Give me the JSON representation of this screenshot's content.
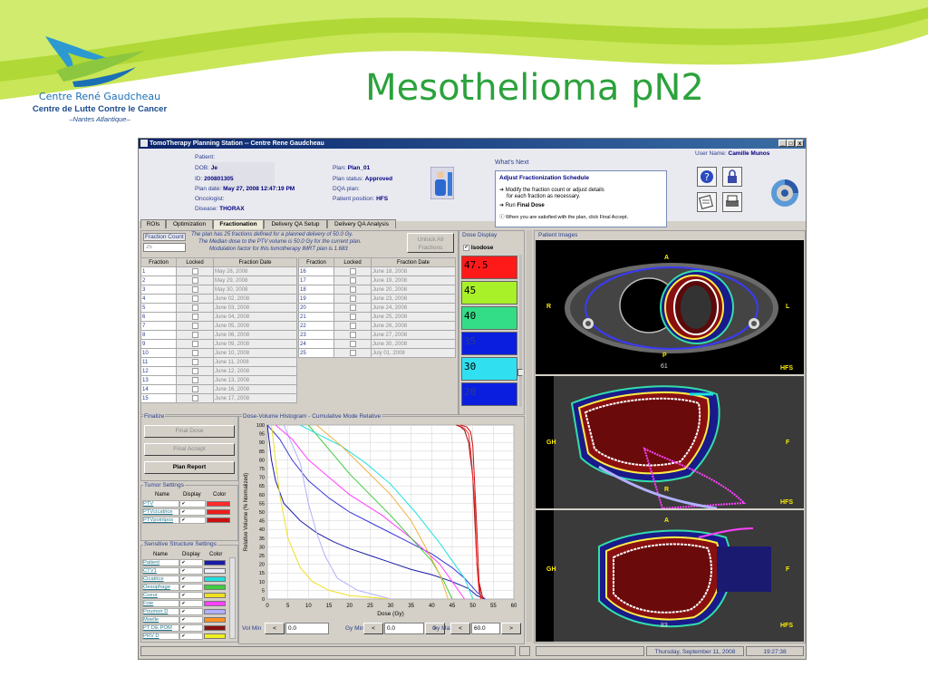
{
  "slide": {
    "title": "Mesothelioma pN2",
    "logo_name": "Centre René Gaudcheau",
    "logo_subtitle": "Centre de Lutte Contre le Cancer",
    "logo_city": "–Nantes Atlantique–"
  },
  "window": {
    "title": "TomoTherapy Planning Station -- Centre Rene Gaudcheau",
    "buttons": [
      "_",
      "□",
      "x"
    ]
  },
  "patient": {
    "patient_label": "Patient:",
    "dob_label": "DOB:",
    "dob_value": "Je",
    "id_label": "ID:",
    "id_value": "200801305",
    "plan_date_label": "Plan date:",
    "plan_date_value": "May 27, 2008 12:47:19 PM",
    "oncologist_label": "Oncologist:",
    "disease_label": "Disease:",
    "disease_value": "THORAX",
    "plan_label": "Plan:",
    "plan_value": "Plan_01",
    "status_label": "Plan status:",
    "status_value": "Approved",
    "dqa_label": "DQA plan:",
    "position_label": "Patient position:",
    "position_value": "HFS"
  },
  "whats_next": {
    "title": "What's Next",
    "heading": "Adjust Fractionization Schedule",
    "line1": "➔ Modify the fraction count or adjust details",
    "line2": "for each fraction as necessary.",
    "line3a": "➔ Run ",
    "line3b": "Final Dose",
    "line4": "ⓘ When you are satisfied with the plan, click Final Accept."
  },
  "user": {
    "label": "User Name:",
    "value": "Camille Munos"
  },
  "tabs": [
    "ROIs",
    "Optimization",
    "Fractionation",
    "Delivery QA Setup",
    "Delivery QA Analysis"
  ],
  "fractionation": {
    "count_label": "Fraction Count",
    "count_value": "25",
    "desc1": "The plan has 25 fractions defined for a planned delivery of 50.0 Gy.",
    "desc2": "The Median dose to the PTV volume is 50.0 Gy for the current plan.",
    "desc3": "Modulation factor for this tomotherapy IMRT plan is 1.683",
    "unlock_label1": "Unlock All",
    "unlock_label2": "Fractions",
    "headers": [
      "Fraction",
      "Locked",
      "Fraction Date"
    ],
    "left_rows": [
      {
        "n": "1",
        "d": "May 28, 2008"
      },
      {
        "n": "2",
        "d": "May 29, 2008"
      },
      {
        "n": "3",
        "d": "May 30, 2008"
      },
      {
        "n": "4",
        "d": "June 02, 2008"
      },
      {
        "n": "5",
        "d": "June 03, 2008"
      },
      {
        "n": "6",
        "d": "June 04, 2008"
      },
      {
        "n": "7",
        "d": "June 05, 2008"
      },
      {
        "n": "8",
        "d": "June 06, 2008"
      },
      {
        "n": "9",
        "d": "June 09, 2008"
      },
      {
        "n": "10",
        "d": "June 10, 2008"
      },
      {
        "n": "11",
        "d": "June 11, 2008"
      },
      {
        "n": "12",
        "d": "June 12, 2008"
      },
      {
        "n": "13",
        "d": "June 13, 2008"
      },
      {
        "n": "14",
        "d": "June 16, 2008"
      },
      {
        "n": "15",
        "d": "June 17, 2008"
      }
    ],
    "right_rows": [
      {
        "n": "16",
        "d": "June 18, 2008"
      },
      {
        "n": "17",
        "d": "June 19, 2008"
      },
      {
        "n": "18",
        "d": "June 20, 2008"
      },
      {
        "n": "19",
        "d": "June 23, 2008"
      },
      {
        "n": "20",
        "d": "June 24, 2008"
      },
      {
        "n": "21",
        "d": "June 25, 2008"
      },
      {
        "n": "22",
        "d": "June 26, 2008"
      },
      {
        "n": "23",
        "d": "June 27, 2008"
      },
      {
        "n": "24",
        "d": "June 30, 2008"
      },
      {
        "n": "25",
        "d": "July 01, 2008"
      }
    ]
  },
  "dose_display": {
    "title": "Dose Display",
    "isodose_label": "Isodose",
    "levels": [
      {
        "v": "47.5",
        "bg": "#ff1a1a",
        "fg": "#000000"
      },
      {
        "v": "45",
        "bg": "#a8f028",
        "fg": "#000000"
      },
      {
        "v": "40",
        "bg": "#33dd88",
        "fg": "#000000"
      },
      {
        "v": "35",
        "bg": "#0a1ee0",
        "fg": "#2a3e8c"
      },
      {
        "v": "30",
        "bg": "#30e0f0",
        "fg": "#000000"
      },
      {
        "v": "20",
        "bg": "#0a1ee0",
        "fg": "#2a3e8c"
      }
    ]
  },
  "finalize": {
    "title": "Finalize",
    "final_dose": "Final Dose",
    "final_accept": "Final Accept",
    "plan_report": "Plan Report"
  },
  "tumor": {
    "title": "Tumor Settings",
    "headers": [
      "Name",
      "Display",
      "Color"
    ],
    "rows": [
      {
        "name": "PTV",
        "color": "#ff2a2a"
      },
      {
        "name": "PTVcicatrice",
        "color": "#ee1c1c"
      },
      {
        "name": "PTVpointpos",
        "color": "#cc1010"
      }
    ]
  },
  "sensitive": {
    "title": "Sensitive Structure Settings",
    "headers": [
      "Name",
      "Display",
      "Color"
    ],
    "rows": [
      {
        "name": "Patient",
        "color": "#1a1aa8"
      },
      {
        "name": "CTV1",
        "color": "#f0f0ff"
      },
      {
        "name": "Cicatrice",
        "color": "#20e0e0"
      },
      {
        "name": "Oesophage",
        "color": "#40cc40"
      },
      {
        "name": "Coeur",
        "color": "#f0e020"
      },
      {
        "name": "Foie",
        "color": "#ff40ff"
      },
      {
        "name": "Poumon D",
        "color": "#b0b0ff"
      },
      {
        "name": "Moelle",
        "color": "#ff9020"
      },
      {
        "name": "PT DE POM",
        "color": "#8a1010"
      },
      {
        "name": "PRV D",
        "color": "#f0f020"
      }
    ]
  },
  "dvh": {
    "title": "Dose-Volume Histogram - Cumulative Mode Relative",
    "vol_min_label": "Vol Min",
    "vol_min_value": "0.0",
    "gy_min_label": "Gy Min",
    "gy_min_value": "0.0",
    "gy_max_label": "Gy Max",
    "gy_max_value": "60.0",
    "spin_less": "<",
    "spin_more": ">"
  },
  "chart_data": {
    "type": "line",
    "title": "Dose-Volume Histogram - Cumulative Mode Relative",
    "xlabel": "Dose (Gy)",
    "ylabel": "Relative Volume (% Normalized)",
    "xlim": [
      0,
      60
    ],
    "ylim": [
      0,
      100
    ],
    "xticks": [
      0,
      5,
      10,
      15,
      20,
      25,
      30,
      35,
      40,
      45,
      50,
      55,
      60
    ],
    "yticks": [
      0,
      5,
      10,
      15,
      20,
      25,
      30,
      35,
      40,
      45,
      50,
      55,
      60,
      65,
      70,
      75,
      80,
      85,
      90,
      95,
      100
    ],
    "grid": true,
    "series": [
      {
        "color": "#1a1aa8",
        "x": [
          0,
          1,
          2,
          4,
          8,
          12,
          16,
          20,
          25,
          30,
          35,
          40,
          45,
          49,
          51,
          53
        ],
        "y": [
          100,
          80,
          68,
          55,
          45,
          38,
          33,
          29,
          25,
          21,
          17,
          14,
          10,
          6,
          2,
          0
        ]
      },
      {
        "color": "#3a3ad8",
        "x": [
          0,
          3,
          6,
          10,
          15,
          20,
          25,
          30,
          35,
          40,
          45,
          48,
          51,
          53
        ],
        "y": [
          100,
          92,
          80,
          68,
          58,
          50,
          44,
          38,
          32,
          26,
          18,
          12,
          4,
          0
        ]
      },
      {
        "color": "#f0e020",
        "x": [
          1,
          3,
          5,
          8,
          11,
          15,
          20,
          30
        ],
        "y": [
          100,
          60,
          35,
          18,
          10,
          5,
          2,
          0
        ]
      },
      {
        "color": "#b0b0ff",
        "x": [
          4,
          8,
          10,
          12,
          14,
          17,
          22,
          30
        ],
        "y": [
          100,
          78,
          55,
          38,
          25,
          12,
          5,
          0
        ]
      },
      {
        "color": "#ff40ff",
        "x": [
          2,
          6,
          10,
          15,
          20,
          28,
          35,
          42,
          48
        ],
        "y": [
          100,
          92,
          80,
          70,
          60,
          48,
          35,
          20,
          0
        ]
      },
      {
        "color": "#40cc40",
        "x": [
          10,
          15,
          20,
          25,
          30,
          35,
          40,
          43,
          45
        ],
        "y": [
          100,
          86,
          72,
          60,
          48,
          35,
          22,
          10,
          0
        ]
      },
      {
        "color": "#20e0e0",
        "x": [
          8,
          12,
          18,
          24,
          30,
          36,
          42,
          48,
          50
        ],
        "y": [
          100,
          95,
          88,
          78,
          66,
          50,
          32,
          12,
          0
        ]
      },
      {
        "color": "#f0b040",
        "x": [
          12,
          18,
          24,
          30,
          35,
          38,
          42,
          44
        ],
        "y": [
          100,
          88,
          74,
          60,
          45,
          32,
          14,
          0
        ]
      },
      {
        "color": "#8a1010",
        "x": [
          46,
          47,
          48,
          49,
          50,
          51,
          52
        ],
        "y": [
          100,
          99,
          97,
          90,
          70,
          20,
          0
        ]
      },
      {
        "color": "#ff2a2a",
        "x": [
          46.5,
          48,
          49,
          49.5,
          50.5,
          51,
          51.5,
          52
        ],
        "y": [
          100,
          98,
          95,
          85,
          55,
          20,
          5,
          0
        ]
      },
      {
        "color": "#cc1010",
        "x": [
          47,
          48.5,
          49.5,
          50,
          51,
          51.5,
          52.5
        ],
        "y": [
          100,
          99,
          96,
          88,
          40,
          10,
          0
        ]
      }
    ]
  },
  "viewer": {
    "title": "Patient Images",
    "view1": {
      "top": "A",
      "left": "R",
      "right": "L",
      "bottom": "P",
      "slice": "61",
      "pos": "HFS"
    },
    "view2": {
      "left": "GH",
      "right": "F",
      "bottom": "R",
      "pos": "HFS"
    },
    "view3": {
      "top": "A",
      "left": "GH",
      "right": "F",
      "slice": "83",
      "pos": "HFS"
    }
  },
  "status_bar": {
    "date": "Thursday, September 11, 2008",
    "time": "19:27:38"
  }
}
